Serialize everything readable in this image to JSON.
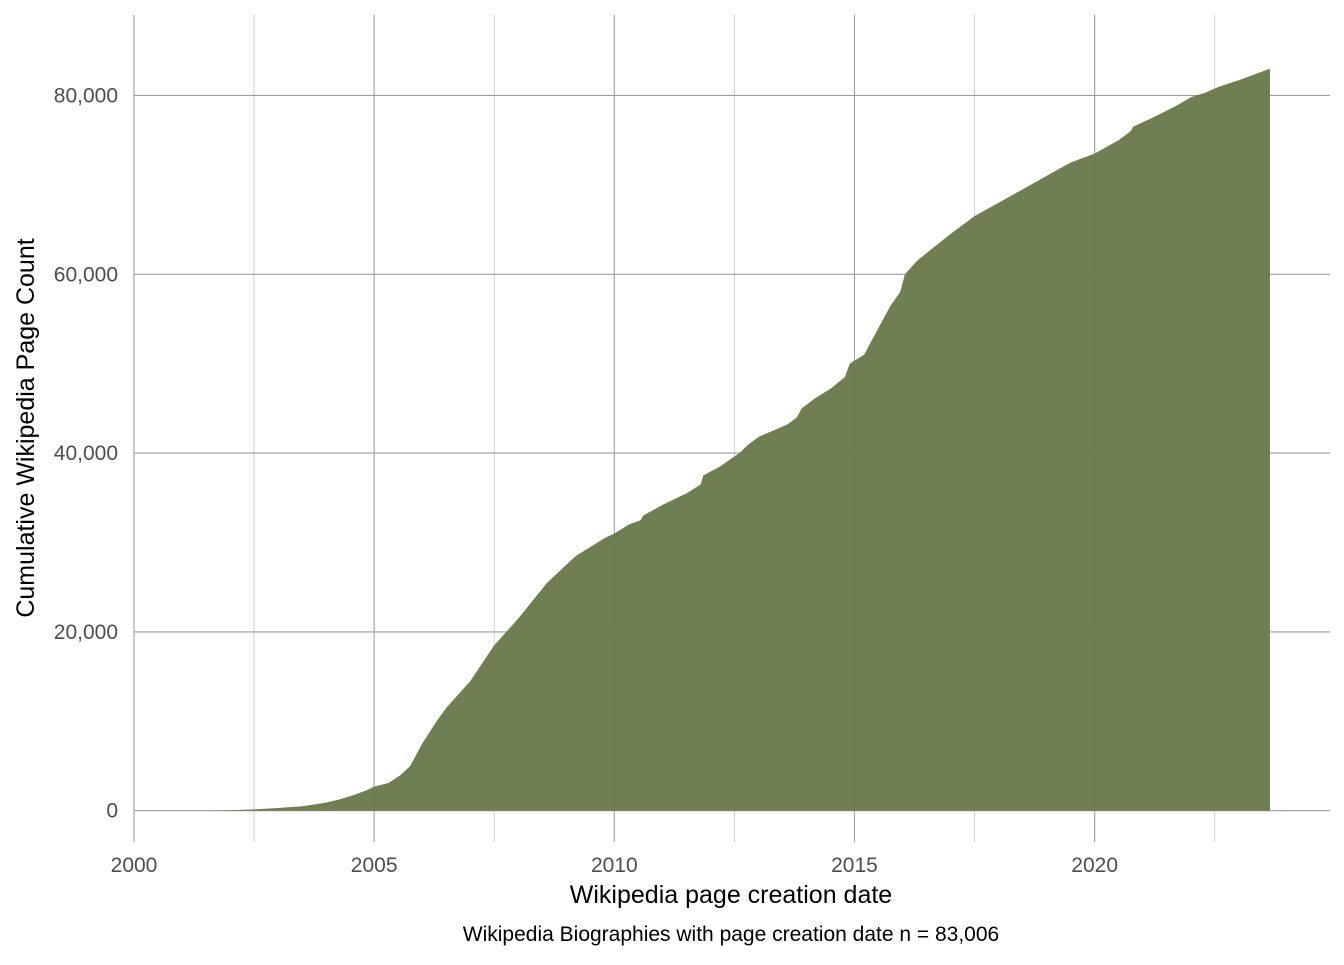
{
  "chart_data": {
    "type": "area",
    "title": "",
    "xlabel": "Wikipedia page creation date",
    "ylabel": "Cumulative Wikipedia Page Count",
    "caption": "Wikipedia Biographies with page creation date n = 83,006",
    "x_unit": "year",
    "xlim": [
      2000,
      2024.9
    ],
    "ylim": [
      -3500,
      89000
    ],
    "x_ticks": [
      2000,
      2005,
      2010,
      2015,
      2020
    ],
    "x_tick_labels": [
      "2000",
      "2005",
      "2010",
      "2015",
      "2020"
    ],
    "x_minor_ticks": [
      2002.5,
      2007.5,
      2012.5,
      2017.5,
      2022.5
    ],
    "y_ticks": [
      0,
      20000,
      40000,
      60000,
      80000
    ],
    "y_tick_labels": [
      "0",
      "20,000",
      "40,000",
      "60,000",
      "80,000"
    ],
    "grid": true,
    "legend": "none",
    "fill_color": "#6b7a4e",
    "series": [
      {
        "x": [
          2001.5,
          2002.0,
          2002.5,
          2003.0,
          2003.5,
          2004.0,
          2004.3,
          2004.6,
          2004.85,
          2005.0,
          2005.3,
          2005.55,
          2005.75,
          2006.0,
          2006.3,
          2006.5,
          2006.75,
          2007.0,
          2007.25,
          2007.5,
          2007.75,
          2008.0,
          2008.3,
          2008.6,
          2008.9,
          2009.2,
          2009.5,
          2009.8,
          2010.0,
          2010.3,
          2010.55,
          2010.6,
          2011.0,
          2011.5,
          2011.8,
          2011.85,
          2012.2,
          2012.6,
          2012.8,
          2013.0,
          2013.3,
          2013.6,
          2013.8,
          2013.9,
          2014.2,
          2014.5,
          2014.8,
          2014.9,
          2015.2,
          2015.3,
          2015.5,
          2015.6,
          2015.75,
          2015.95,
          2016.05,
          2016.3,
          2016.6,
          2017.0,
          2017.5,
          2018.0,
          2018.5,
          2019.0,
          2019.5,
          2020.0,
          2020.5,
          2020.75,
          2020.8,
          2021.2,
          2021.5,
          2021.75,
          2022.0,
          2022.3,
          2022.6,
          2023.0,
          2023.4,
          2023.65
        ],
        "values": [
          0,
          50,
          150,
          300,
          500,
          900,
          1300,
          1800,
          2300,
          2700,
          3100,
          4000,
          5000,
          7500,
          10000,
          11500,
          13000,
          14500,
          16500,
          18500,
          20000,
          21500,
          23500,
          25500,
          27000,
          28500,
          29500,
          30500,
          31000,
          32000,
          32500,
          33000,
          34200,
          35500,
          36500,
          37500,
          38500,
          40000,
          41000,
          41800,
          42500,
          43200,
          44000,
          45000,
          46200,
          47200,
          48500,
          50000,
          51000,
          52000,
          54000,
          55000,
          56500,
          58000,
          60000,
          61500,
          62800,
          64500,
          66500,
          68000,
          69500,
          71000,
          72500,
          73500,
          75000,
          76000,
          76500,
          77500,
          78300,
          79000,
          79800,
          80300,
          81000,
          81700,
          82500,
          83006
        ]
      }
    ]
  }
}
